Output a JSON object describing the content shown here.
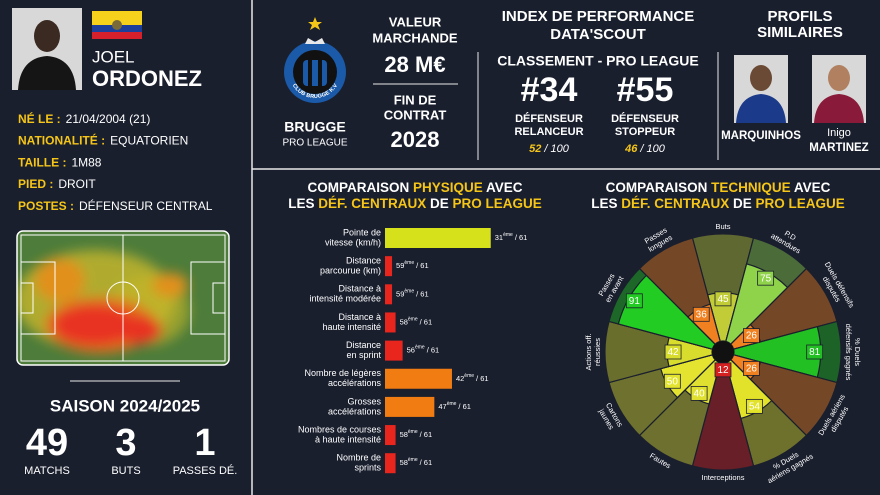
{
  "player": {
    "first_name": "JOEL",
    "last_name": "ORDONEZ",
    "info": [
      {
        "label": "NÉ LE :",
        "value": "21/04/2004 (21)"
      },
      {
        "label": "NATIONALITÉ :",
        "value": "EQUATORIEN"
      },
      {
        "label": "TAILLE :",
        "value": "1M88"
      },
      {
        "label": "PIED :",
        "value": "DROIT"
      },
      {
        "label": "POSTES :",
        "value": "DÉFENSEUR CENTRAL"
      }
    ]
  },
  "season": {
    "title": "SAISON 2024/2025",
    "stats": [
      {
        "value": 49,
        "label": "MATCHS"
      },
      {
        "value": 3,
        "label": "BUTS"
      },
      {
        "value": 1,
        "label": "PASSES DÉ."
      }
    ]
  },
  "club": {
    "name": "BRUGGE",
    "league": "PRO LEAGUE",
    "crest_text": "CLUB BRUGGE K.V"
  },
  "market": {
    "value_title": [
      "VALEUR",
      "MARCHANDE"
    ],
    "value": "28 M€",
    "contract_title": [
      "FIN DE",
      "CONTRAT"
    ],
    "contract_end": 2028
  },
  "index": {
    "title": [
      "INDEX DE PERFORMANCE",
      "DATA'SCOUT"
    ],
    "subtitle": "CLASSEMENT - PRO LEAGUE",
    "profiles": [
      {
        "rank": "#34",
        "role": [
          "DÉFENSEUR",
          "RELANCEUR"
        ],
        "score": 52,
        "max": "/ 100"
      },
      {
        "rank": "#55",
        "role": [
          "DÉFENSEUR",
          "STOPPEUR"
        ],
        "score": 46,
        "max": "/ 100"
      }
    ]
  },
  "similar": {
    "title": [
      "PROFILS",
      "SIMILAIRES"
    ],
    "players": [
      {
        "name": [
          "MARQUINHOS"
        ]
      },
      {
        "name": [
          "Inigo",
          "MARTINEZ"
        ]
      }
    ]
  },
  "chart_data": [
    {
      "type": "bar",
      "orientation": "horizontal",
      "title_lines": [
        [
          {
            "text": "COMPARAISON "
          },
          {
            "text": "PHYSIQUE",
            "highlight": true
          },
          {
            "text": " AVEC"
          }
        ],
        [
          {
            "text": "LES "
          },
          {
            "text": "DÉF. CENTRAUX",
            "highlight": true
          },
          {
            "text": " DE "
          },
          {
            "text": "PRO LEAGUE",
            "highlight": true
          }
        ]
      ],
      "highlight_color": "#f5c518",
      "categories": [
        [
          "Pointe de",
          "vitesse (km/h)"
        ],
        [
          "Distance",
          "parcourue (km)"
        ],
        [
          "Distance à",
          "intensité modérée"
        ],
        [
          "Distance à",
          "haute intensité"
        ],
        [
          "Distance",
          "en sprint"
        ],
        [
          "Nombre de légères",
          "accélérations"
        ],
        [
          "Grosses",
          "accélérations"
        ],
        [
          "Nombres de courses",
          "à haute intensité"
        ],
        [
          "Nombre de",
          "sprints"
        ]
      ],
      "values": [
        31,
        59,
        59,
        58,
        56,
        42,
        47,
        58,
        58
      ],
      "colors": [
        "#d6e11c",
        "#e8261e",
        "#e8261e",
        "#e8261e",
        "#e8261e",
        "#f07c12",
        "#f07c12",
        "#e8261e",
        "#e8261e"
      ],
      "rank_suffix": "ème",
      "rank_total": "/ 61",
      "xlim": [
        61,
        0
      ]
    },
    {
      "type": "polar_bar",
      "title_lines": [
        [
          {
            "text": "COMPARAISON "
          },
          {
            "text": "TECHNIQUE",
            "highlight": true
          },
          {
            "text": " AVEC"
          }
        ],
        [
          {
            "text": "LES "
          },
          {
            "text": "DÉF. CENTRAUX",
            "highlight": true
          },
          {
            "text": " DE "
          },
          {
            "text": "PRO LEAGUE",
            "highlight": true
          }
        ]
      ],
      "highlight_color": "#f5c518",
      "categories": [
        [
          "Buts"
        ],
        [
          "P.D",
          "attendues"
        ],
        [
          "Duels défensifs",
          "disputés"
        ],
        [
          "% Duels",
          "défensifs gagnés"
        ],
        [
          "Duels aériens",
          "disputés"
        ],
        [
          "% Duels",
          "aériens gagnés"
        ],
        [
          "Interceptions"
        ],
        [
          "Fautes"
        ],
        [
          "Cartons",
          "jaunes"
        ],
        [
          "Actions off.",
          "réussies"
        ],
        [
          "Passes",
          "en avant"
        ],
        [
          "Passes",
          "longues"
        ]
      ],
      "values": [
        45,
        75,
        26,
        81,
        26,
        54,
        12,
        40,
        50,
        42,
        91,
        36
      ],
      "colors": [
        "#c2cc36",
        "#8fd34a",
        "#f08020",
        "#22c022",
        "#f08020",
        "#e2e22a",
        "#d42020",
        "#dfe030",
        "#e4e430",
        "#d8dc2c",
        "#22cc22",
        "#f08020"
      ],
      "rlim": [
        0,
        100
      ]
    }
  ]
}
